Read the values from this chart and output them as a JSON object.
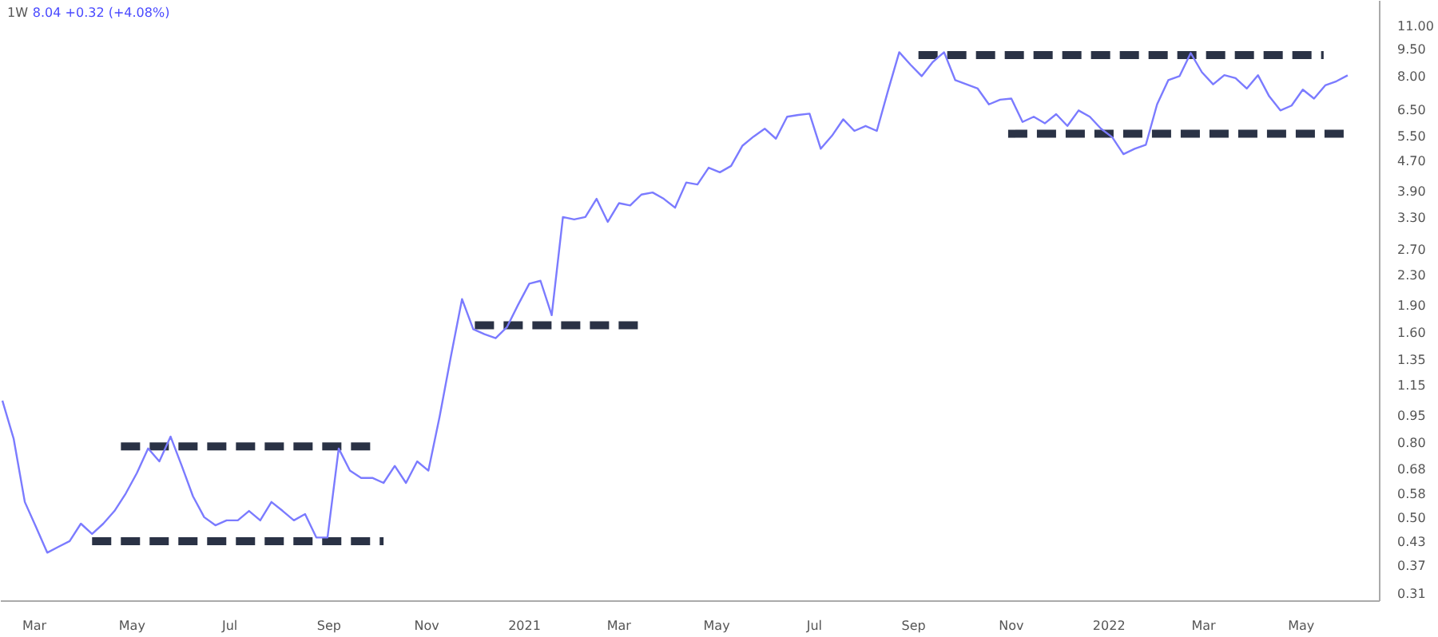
{
  "chart_data": {
    "type": "line",
    "title": "1W",
    "subtitle": "8.04 +0.32 (+4.08%)",
    "log": true,
    "grid": false,
    "marker": "none",
    "xlim": [
      "2020-02-09",
      "2022-06-19"
    ],
    "xticks": [
      {
        "value": "2020-03-01",
        "label": "Mar"
      },
      {
        "value": "2020-05-01",
        "label": "May"
      },
      {
        "value": "2020-07-01",
        "label": "Jul"
      },
      {
        "value": "2020-09-01",
        "label": "Sep"
      },
      {
        "value": "2020-11-01",
        "label": "Nov"
      },
      {
        "value": "2021-01-01",
        "label": "2021"
      },
      {
        "value": "2021-03-01",
        "label": "Mar"
      },
      {
        "value": "2021-05-01",
        "label": "May"
      },
      {
        "value": "2021-07-01",
        "label": "Jul"
      },
      {
        "value": "2021-09-01",
        "label": "Sep"
      },
      {
        "value": "2021-11-01",
        "label": "Nov"
      },
      {
        "value": "2022-01-01",
        "label": "2022"
      },
      {
        "value": "2022-03-01",
        "label": "Mar"
      },
      {
        "value": "2022-05-01",
        "label": "May"
      }
    ],
    "ylim": [
      0.295,
      12.85
    ],
    "yticks": [
      0.31,
      0.37,
      0.43,
      {
        "value": 0.5,
        "label": "0.50"
      },
      0.58,
      0.68,
      {
        "value": 0.8,
        "label": "0.80"
      },
      0.95,
      1.15,
      1.35,
      {
        "value": 1.6,
        "label": "1.60"
      },
      {
        "value": 1.9,
        "label": "1.90"
      },
      {
        "value": 2.3,
        "label": "2.30"
      },
      {
        "value": 2.7,
        "label": "2.70"
      },
      {
        "value": 3.3,
        "label": "3.30"
      },
      {
        "value": 3.9,
        "label": "3.90"
      },
      {
        "value": 4.7,
        "label": "4.70"
      },
      {
        "value": 5.5,
        "label": "5.50"
      },
      {
        "value": 6.5,
        "label": "6.50"
      },
      {
        "value": 8,
        "label": "8.00"
      },
      {
        "value": 9.5,
        "label": "9.50"
      },
      {
        "value": 11,
        "label": "11.00"
      }
    ],
    "series": [
      {
        "color": "#7b7bff",
        "line_style": "solid",
        "x": [
          "2020-02-10",
          "2020-02-17",
          "2020-02-24",
          "2020-03-02",
          "2020-03-09",
          "2020-03-16",
          "2020-03-23",
          "2020-03-30",
          "2020-04-06",
          "2020-04-13",
          "2020-04-20",
          "2020-04-27",
          "2020-05-04",
          "2020-05-11",
          "2020-05-18",
          "2020-05-25",
          "2020-06-01",
          "2020-06-08",
          "2020-06-15",
          "2020-06-22",
          "2020-06-29",
          "2020-07-06",
          "2020-07-13",
          "2020-07-20",
          "2020-07-27",
          "2020-08-03",
          "2020-08-10",
          "2020-08-17",
          "2020-08-24",
          "2020-08-31",
          "2020-09-07",
          "2020-09-14",
          "2020-09-21",
          "2020-09-28",
          "2020-10-05",
          "2020-10-12",
          "2020-10-19",
          "2020-10-26",
          "2020-11-02",
          "2020-11-09",
          "2020-11-16",
          "2020-11-23",
          "2020-11-30",
          "2020-12-07",
          "2020-12-14",
          "2020-12-21",
          "2020-12-28",
          "2021-01-04",
          "2021-01-11",
          "2021-01-18",
          "2021-01-25",
          "2021-02-01",
          "2021-02-08",
          "2021-02-15",
          "2021-02-22",
          "2021-03-01",
          "2021-03-08",
          "2021-03-15",
          "2021-03-22",
          "2021-03-29",
          "2021-04-05",
          "2021-04-12",
          "2021-04-19",
          "2021-04-26",
          "2021-05-03",
          "2021-05-10",
          "2021-05-17",
          "2021-05-24",
          "2021-05-31",
          "2021-06-07",
          "2021-06-14",
          "2021-06-21",
          "2021-06-28",
          "2021-07-05",
          "2021-07-12",
          "2021-07-19",
          "2021-07-26",
          "2021-08-02",
          "2021-08-09",
          "2021-08-16",
          "2021-08-23",
          "2021-08-30",
          "2021-09-06",
          "2021-09-13",
          "2021-09-20",
          "2021-09-27",
          "2021-10-04",
          "2021-10-11",
          "2021-10-18",
          "2021-10-25",
          "2021-11-01",
          "2021-11-08",
          "2021-11-15",
          "2021-11-22",
          "2021-11-29",
          "2021-12-06",
          "2021-12-13",
          "2021-12-20",
          "2021-12-27",
          "2022-01-03",
          "2022-01-10",
          "2022-01-17",
          "2022-01-24",
          "2022-01-31",
          "2022-02-07",
          "2022-02-14",
          "2022-02-21",
          "2022-02-28",
          "2022-03-07",
          "2022-03-14",
          "2022-03-21",
          "2022-03-28",
          "2022-04-04",
          "2022-04-11",
          "2022-04-18",
          "2022-04-25",
          "2022-05-02",
          "2022-05-09",
          "2022-05-16",
          "2022-05-23",
          "2022-05-30"
        ],
        "values": [
          1.04,
          0.82,
          0.55,
          0.47,
          0.4,
          0.415,
          0.43,
          0.48,
          0.45,
          0.48,
          0.52,
          0.58,
          0.66,
          0.77,
          0.71,
          0.83,
          0.69,
          0.57,
          0.5,
          0.475,
          0.49,
          0.49,
          0.52,
          0.49,
          0.55,
          0.52,
          0.49,
          0.51,
          0.44,
          0.44,
          0.77,
          0.67,
          0.64,
          0.64,
          0.62,
          0.69,
          0.62,
          0.71,
          0.67,
          0.94,
          1.37,
          1.97,
          1.63,
          1.58,
          1.54,
          1.65,
          1.9,
          2.17,
          2.21,
          1.78,
          3.3,
          3.25,
          3.3,
          3.7,
          3.2,
          3.6,
          3.55,
          3.8,
          3.85,
          3.7,
          3.5,
          4.1,
          4.05,
          4.5,
          4.37,
          4.55,
          5.16,
          5.47,
          5.75,
          5.4,
          6.2,
          6.27,
          6.32,
          5.07,
          5.5,
          6.1,
          5.67,
          5.85,
          5.67,
          7.3,
          9.3,
          8.6,
          8.0,
          8.75,
          9.3,
          7.8,
          7.6,
          7.4,
          6.7,
          6.9,
          6.95,
          6.0,
          6.2,
          5.95,
          6.3,
          5.85,
          6.45,
          6.2,
          5.75,
          5.45,
          4.9,
          5.07,
          5.2,
          6.7,
          7.8,
          8.0,
          9.25,
          8.2,
          7.6,
          8.05,
          7.9,
          7.4,
          8.05,
          7.05,
          6.45,
          6.65,
          7.35,
          6.95,
          7.55,
          7.75,
          8.04
        ]
      },
      {
        "color": "#2a3245",
        "line_style": "dashed",
        "x": [
          "2020-04-24",
          "2020-09-30"
        ],
        "values": [
          0.78,
          0.78
        ]
      },
      {
        "color": "#2a3245",
        "line_style": "dashed",
        "x": [
          "2020-04-06",
          "2020-10-05"
        ],
        "values": [
          0.43,
          0.43
        ]
      },
      {
        "color": "#2a3245",
        "line_style": "dashed",
        "x": [
          "2020-12-01",
          "2021-03-15"
        ],
        "values": [
          1.67,
          1.67
        ]
      },
      {
        "color": "#2a3245",
        "line_style": "dashed",
        "x": [
          "2021-09-04",
          "2022-05-15"
        ],
        "values": [
          9.14,
          9.14
        ]
      },
      {
        "color": "#2a3245",
        "line_style": "dashed",
        "x": [
          "2021-10-30",
          "2022-05-29"
        ],
        "values": [
          5.57,
          5.57
        ]
      }
    ]
  }
}
